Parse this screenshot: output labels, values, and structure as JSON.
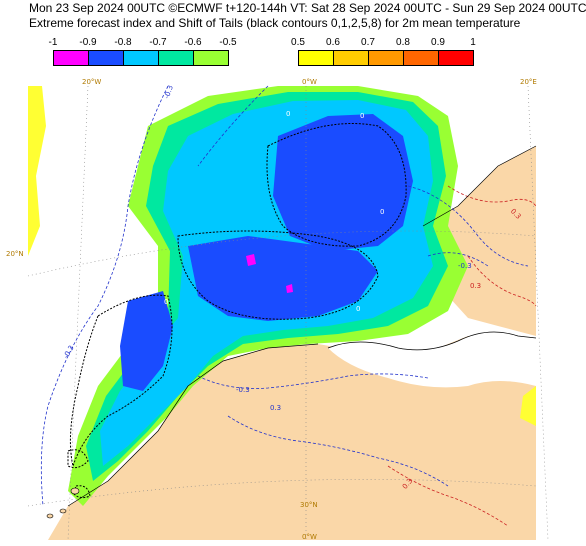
{
  "header": {
    "line1": "Mon 23 Sep 2024 00UTC ©ECMWF t+120-144h  VT: Sat 28 Sep 2024 00UTC - Sun 29 Sep 2024 00UTC",
    "line2": "Extreme forecast index and Shift of Tails (black contours 0,1,2,5,8) for 2m mean temperature"
  },
  "colorbar_negative": {
    "labels": [
      "-1",
      "-0.9",
      "-0.8",
      "-0.7",
      "-0.6",
      "-0.5"
    ],
    "colors": [
      "#ff00ff",
      "#1a4cff",
      "#00c8ff",
      "#00e8a0",
      "#99ff33"
    ]
  },
  "colorbar_positive": {
    "labels": [
      "0.5",
      "0.6",
      "0.7",
      "0.8",
      "0.9",
      "1"
    ],
    "colors": [
      "#ffff00",
      "#ffcc00",
      "#ff9900",
      "#ff6600",
      "#ff0000"
    ]
  },
  "map": {
    "lon_labels": {
      "w20": "20°W",
      "zero_top": "0°W",
      "e20": "20°E",
      "zero_bottom": "0°W"
    },
    "lat_labels": {
      "n20": "20°N",
      "n30": "30°N"
    },
    "contour_labels": {
      "blue_a": "-0.3",
      "blue_b": "-0.3",
      "blue_c": "-0.3",
      "blue_d": "-0.3",
      "blue_e": "0.3",
      "red_a": "0.3",
      "red_b": "0.3",
      "red_c": "0.3",
      "black_a": "0",
      "black_b": "0",
      "black_c": "0",
      "black_d": "0",
      "black_e": "0"
    }
  }
}
